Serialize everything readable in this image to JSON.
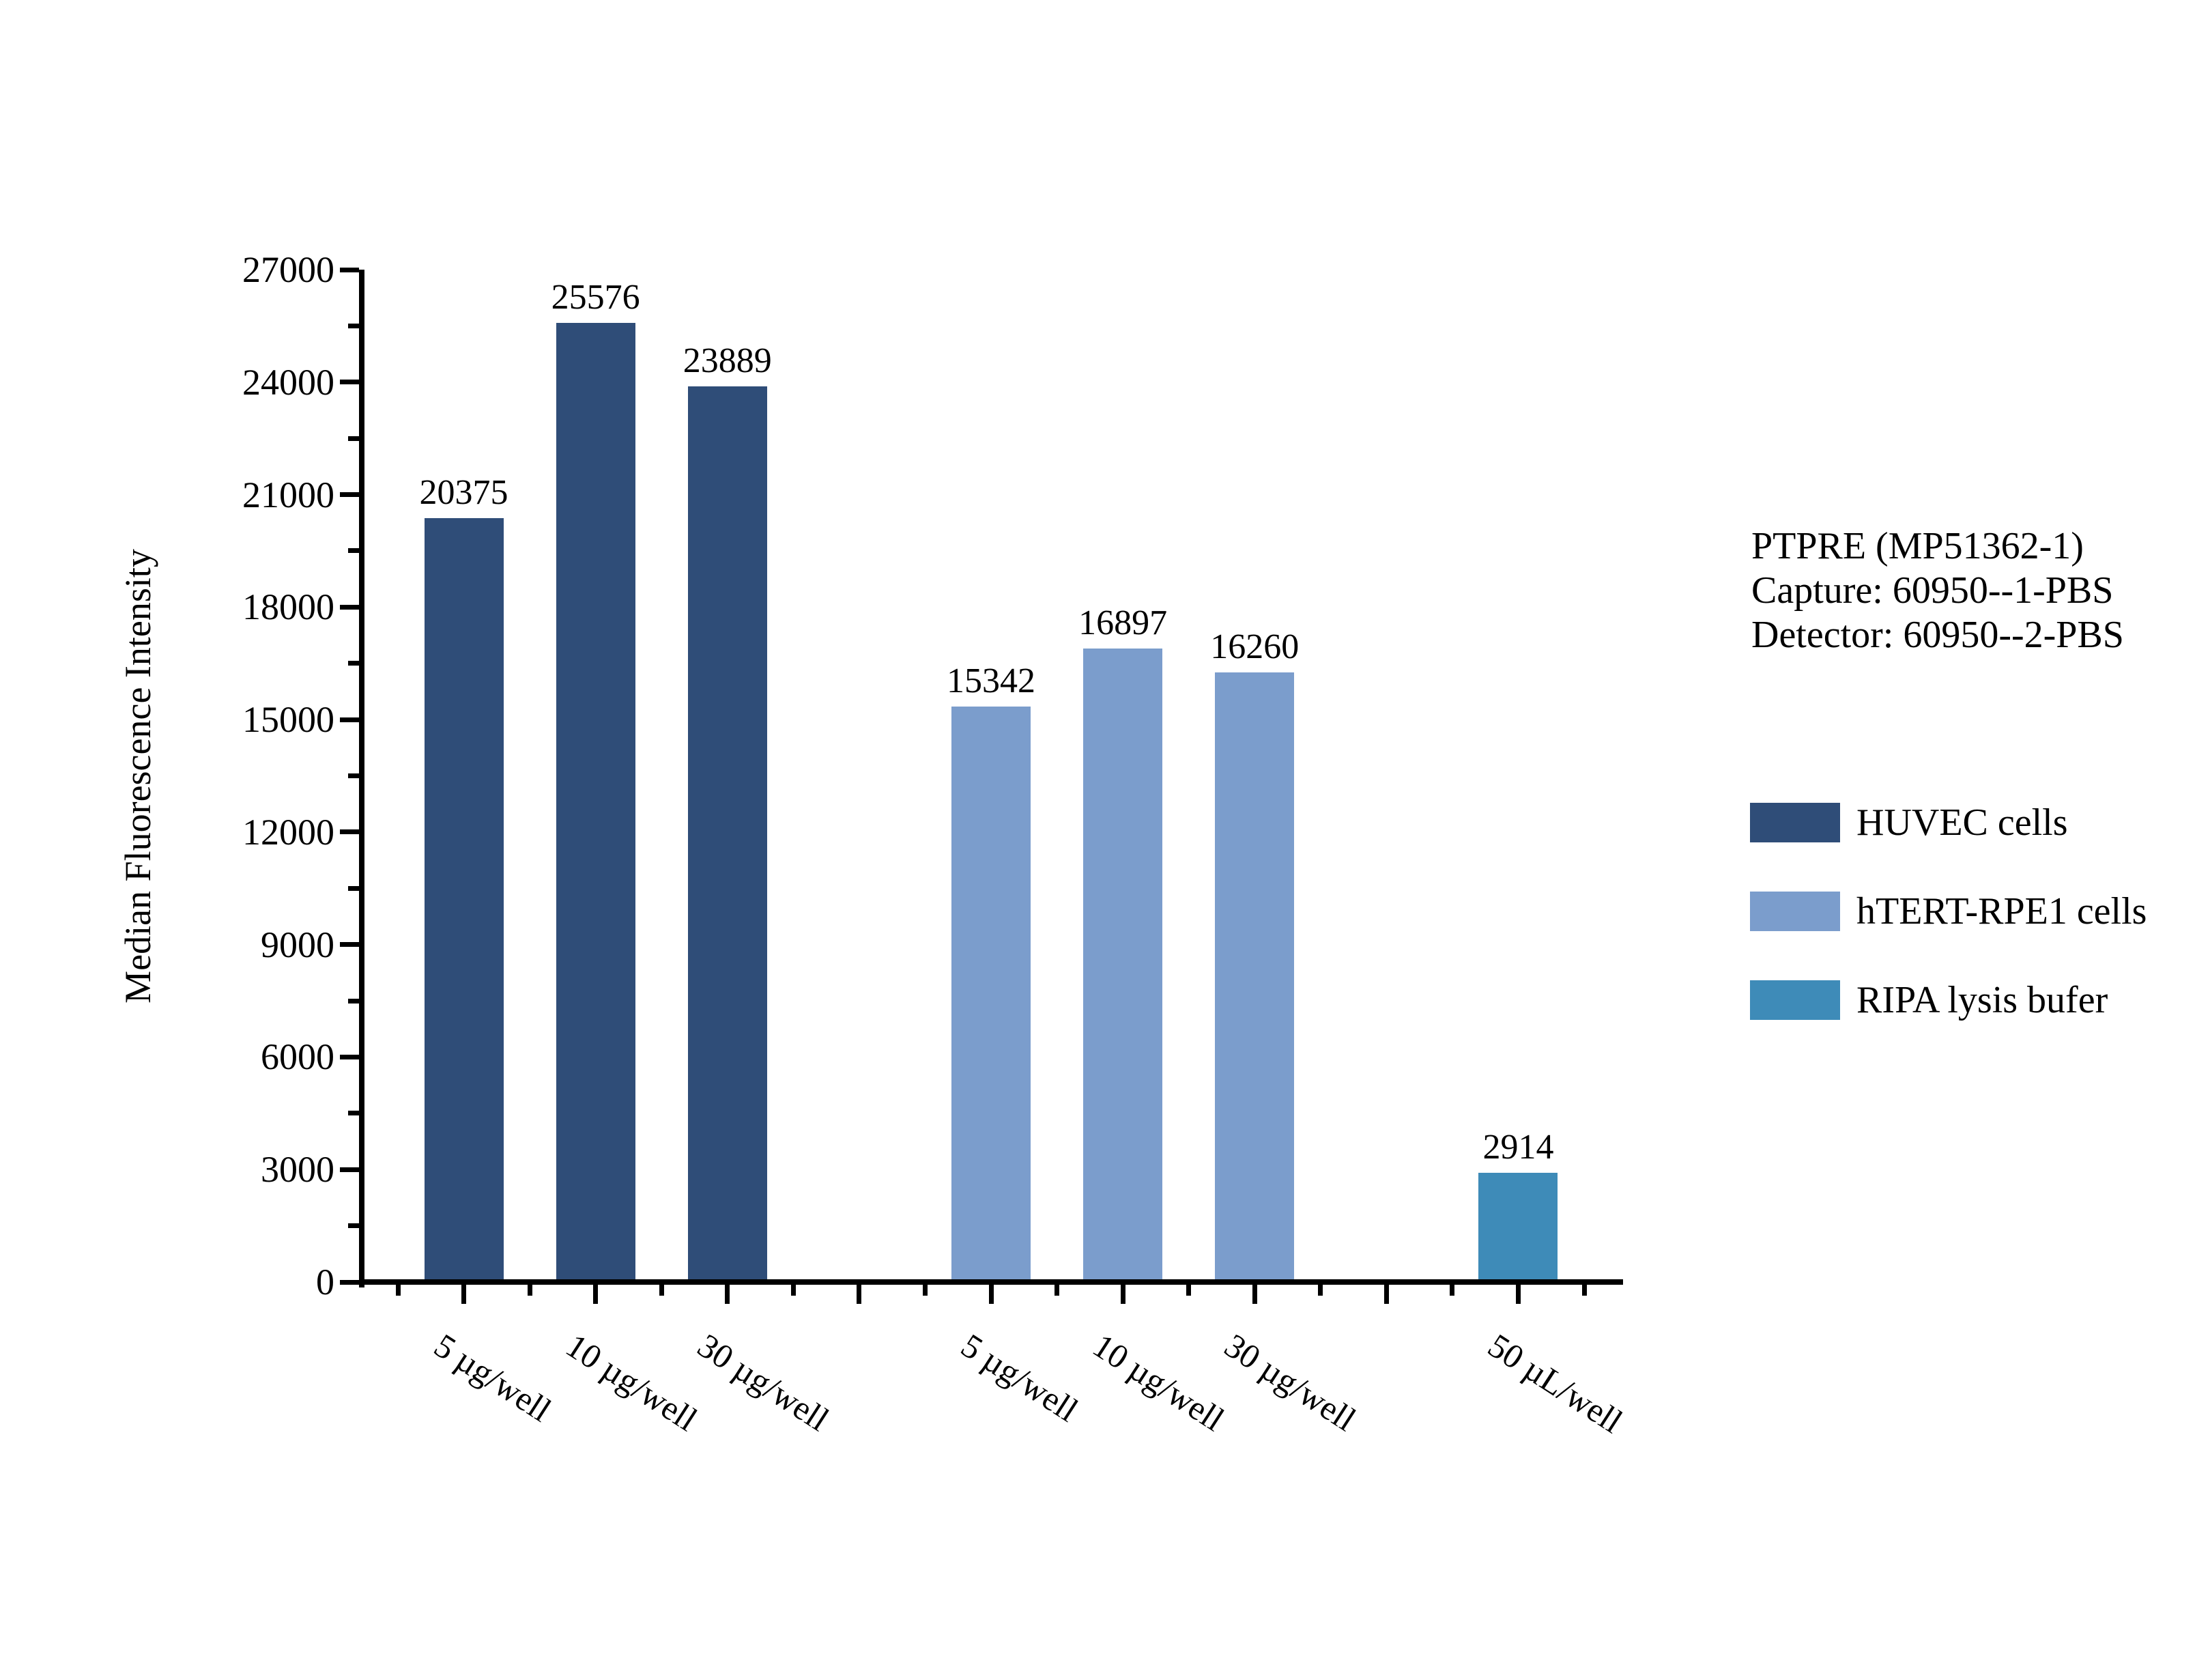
{
  "chart_data": {
    "type": "bar",
    "title": "",
    "xlabel": "",
    "ylabel": "Median Fluorescence Intensity",
    "ylim": [
      0,
      27000
    ],
    "y_major_step": 3000,
    "y_minor_step": 1500,
    "grid": false,
    "legend_position": "right",
    "annotation": [
      "PTPRE (MP51362-1)",
      "Capture: 60950--1-PBS",
      "Detector: 60950--2-PBS"
    ],
    "categories": [
      "5 µg/well",
      "10 µg/well",
      "30 µg/well",
      "5 µg/well",
      "10 µg/well",
      "30 µg/well",
      "50 µL/well"
    ],
    "series": [
      {
        "name": "HUVEC cells",
        "color": "#2F4D78",
        "categories": [
          "5 µg/well",
          "10 µg/well",
          "30 µg/well"
        ],
        "values": [
          20375,
          25576,
          23889
        ]
      },
      {
        "name": "hTERT-RPE1 cells",
        "color": "#7B9DCC",
        "categories": [
          "5 µg/well",
          "10 µg/well",
          "30 µg/well"
        ],
        "values": [
          15342,
          16897,
          16260
        ]
      },
      {
        "name": "RIPA lysis bufer",
        "color": "#3E8BB8",
        "categories": [
          "50 µL/well"
        ],
        "values": [
          2914
        ]
      }
    ]
  }
}
